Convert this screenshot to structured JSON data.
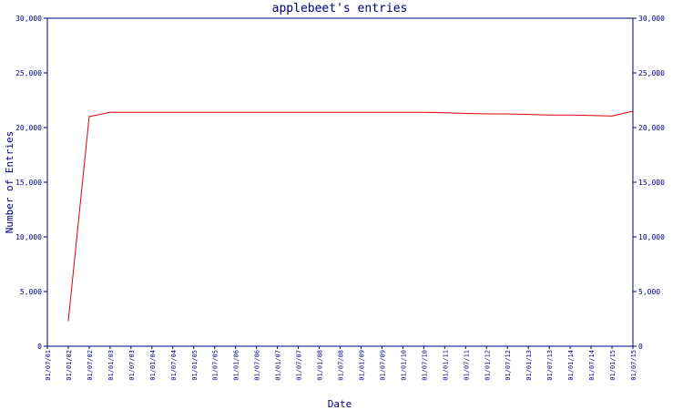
{
  "chart_data": {
    "type": "line",
    "title": "applebeet's entries",
    "x_label": "Date",
    "y_label": "Number of Entries",
    "categories": [
      "01/07/01",
      "01/01/02",
      "01/07/02",
      "01/01/03",
      "01/07/03",
      "01/01/04",
      "01/07/04",
      "01/01/05",
      "01/07/05",
      "01/01/06",
      "01/07/06",
      "01/01/07",
      "01/07/07",
      "01/01/08",
      "01/07/08",
      "01/01/09",
      "01/07/09",
      "01/01/10",
      "01/07/10",
      "01/01/11",
      "01/07/11",
      "01/01/12",
      "01/07/12",
      "01/01/13",
      "01/07/13",
      "01/01/14",
      "01/07/14",
      "01/01/15",
      "01/07/15"
    ],
    "series": [
      {
        "color": "#e00000",
        "values": [
          null,
          2300,
          21000,
          21400,
          21400,
          21400,
          21400,
          21400,
          21400,
          21400,
          21400,
          21400,
          21400,
          21400,
          21400,
          21400,
          21400,
          21400,
          21400,
          21350,
          21300,
          21250,
          21250,
          21200,
          21150,
          21150,
          21100,
          21050,
          21500
        ]
      }
    ],
    "ylim": [
      0,
      30000
    ],
    "yticks": [
      0,
      {
        "value": 5000,
        "label": "5,000"
      },
      {
        "value": 10000,
        "label": "10,000"
      },
      {
        "value": 15000,
        "label": "15,000"
      },
      {
        "value": 20000,
        "label": "20,000"
      },
      {
        "value": 25000,
        "label": "25,000"
      },
      {
        "value": 30000,
        "label": "30,000"
      }
    ],
    "y2lim": [
      0,
      30000
    ],
    "y2ticks": [
      0,
      {
        "value": 5000,
        "label": "5,000"
      },
      {
        "value": 10000,
        "label": "10,000"
      },
      {
        "value": 15000,
        "label": "15,000"
      },
      {
        "value": 20000,
        "label": "20,000"
      },
      {
        "value": 25000,
        "label": "25,000"
      },
      {
        "value": 30000,
        "label": "30,000"
      }
    ],
    "grid": false
  }
}
